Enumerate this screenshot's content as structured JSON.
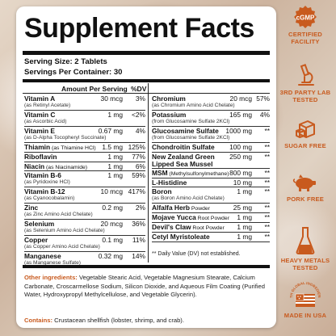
{
  "title": "Supplement Facts",
  "serving_size": "Serving Size: 2 Tablets",
  "servings_per_container": "Servings Per Container: 30",
  "header": {
    "amount": "Amount Per Serving",
    "dv": "%DV"
  },
  "left_rows": [
    {
      "name": "Vitamin A",
      "sub": "(as Retinyl Acetate)",
      "amount": "30 mcg",
      "dv": "3%"
    },
    {
      "name": "Vitamin C",
      "sub": "(as Ascorbic Acid)",
      "amount": "1 mg",
      "dv": "<2%"
    },
    {
      "name": "Vitamin E",
      "sub": "(as D-Alpha Tocopheryl Succinate)",
      "amount": "0.67 mg",
      "dv": "4%"
    },
    {
      "name": "Thiamin",
      "sub_inline": "(as Thiamine HCl)",
      "amount": "1.5 mg",
      "dv": "125%"
    },
    {
      "name": "Riboflavin",
      "amount": "1 mg",
      "dv": "77%"
    },
    {
      "name": "Niacin",
      "sub_inline": "(as Niacinamide)",
      "amount": "1 mg",
      "dv": "6%"
    },
    {
      "name": "Vitamin B-6",
      "sub": "(as Pyridoxine HCl)",
      "amount": "1 mg",
      "dv": "59%"
    },
    {
      "name": "Vitamin B-12",
      "sub": "(as Cyanocobalamin)",
      "amount": "10 mcg",
      "dv": "417%"
    },
    {
      "name": "Zinc",
      "sub": "(as Zinc Amino Acid Chelate)",
      "amount": "0.2 mg",
      "dv": "2%"
    },
    {
      "name": "Selenium",
      "sub": "(as Selenium Amino Acid Chelate)",
      "amount": "20 mcg",
      "dv": "36%"
    },
    {
      "name": "Copper",
      "sub": "(as Copper Amino Acid Chelate)",
      "amount": "0.1 mg",
      "dv": "11%"
    },
    {
      "name": "Manganese",
      "sub": "(as Manganese Sulfate)",
      "amount": "0.32 mg",
      "dv": "14%"
    }
  ],
  "right_rows": [
    {
      "name": "Chromium",
      "sub": "(as Chromium Amino Acid Chelate)",
      "amount": "20 mcg",
      "dv": "57%"
    },
    {
      "name": "Potassium",
      "sub": "(from Glucosamine Sulfate 2KCl)",
      "amount": "165 mg",
      "dv": "4%"
    },
    {
      "name": "Glucosamine Sulfate",
      "sub": "(from Glucosamine Sulfate 2KCl)",
      "amount": "1000 mg",
      "dv": "**"
    },
    {
      "name": "Chondroitin Sulfate",
      "amount": "100 mg",
      "dv": "**"
    },
    {
      "name": "New Zealand Green",
      "sub_bold": "Lipped Sea Mussel",
      "amount": "250 mg",
      "dv": "**"
    },
    {
      "name": "MSM",
      "sub_inline": "(Methylsulfonylmethane)",
      "amount": "800 mg",
      "dv": "**"
    },
    {
      "name": "L-Histidine",
      "amount": "10 mg",
      "dv": "**"
    },
    {
      "name": "Boron",
      "sub": "(as Boron Amino Acid Chelate)",
      "amount": "1 mg",
      "dv": "**"
    },
    {
      "name": "Alfalfa Herb",
      "sub_inline": "Powder",
      "amount": "25 mg",
      "dv": "**"
    },
    {
      "name": "Mojave Yucca",
      "sub_inline": "Root Powder",
      "amount": "1 mg",
      "dv": "**"
    },
    {
      "name": "Devil's Claw",
      "sub_inline": "Root Powder",
      "amount": "1 mg",
      "dv": "**"
    },
    {
      "name": "Cetyl Myristoleate",
      "amount": "1 mg",
      "dv": "**"
    }
  ],
  "footnote": "** Daily Value (DV) not established.",
  "other_ingredients_label": "Other ingredients:",
  "other_ingredients_text": "Vegetable Stearic Acid, Vegetable Magnesium Stearate, Calcium Carbonate, Croscarmellose Sodium, Silicon Dioxide, and Aqueous Film Coating (Purified Water, Hydroxypropyl Methylcellulose, and Vegetable Glycerin).",
  "contains_label": "Contains:",
  "contains_text": "Crustacean shellfish (lobster, shrimp, and crab).",
  "badges": [
    {
      "icon": "cgmp-seal-icon",
      "text": "cGMP",
      "label": "CERTIFIED FACILITY"
    },
    {
      "icon": "microscope-icon",
      "label": "3RD PARTY LAB TESTED"
    },
    {
      "icon": "sugar-cube-icon",
      "label": "SUGAR FREE"
    },
    {
      "icon": "pig-icon",
      "label": "PORK FREE"
    },
    {
      "icon": "flask-icon",
      "label": "HEAVY METALS TESTED"
    },
    {
      "icon": "usa-flag-icon",
      "text": "WITH GLOBAL INGREDIENTS",
      "label": "MADE IN USA"
    }
  ],
  "colors": {
    "accent": "#c85a1e",
    "ink": "#111111"
  }
}
